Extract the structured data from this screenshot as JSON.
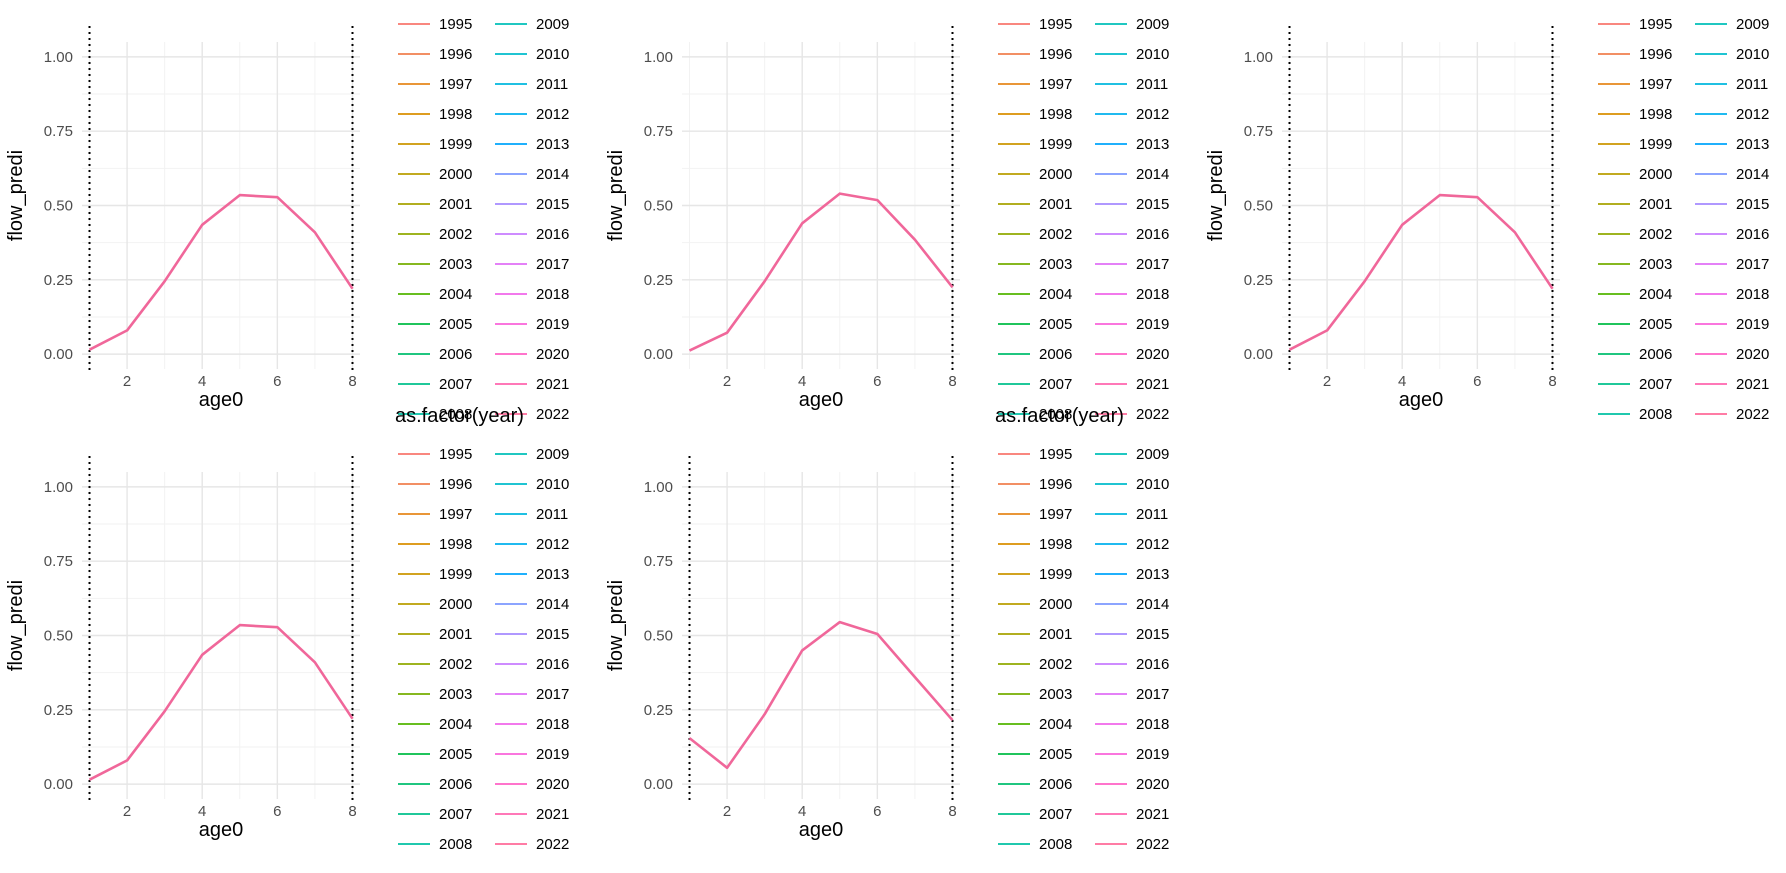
{
  "chart_data": [
    {
      "type": "line",
      "xlabel": "age0",
      "ylabel": "flow_predi",
      "xlim": [
        1,
        8
      ],
      "ylim": [
        0,
        1
      ],
      "xticks": [
        "2",
        "4",
        "6",
        "8"
      ],
      "yticks": [
        "0.00",
        "0.25",
        "0.50",
        "0.75",
        "1.00"
      ],
      "vlines": [
        1,
        8
      ],
      "legend_title": "as.factor(year)",
      "grid": true,
      "legend_position": "right",
      "x": [
        1,
        2,
        3,
        4,
        5,
        6,
        7,
        8
      ],
      "values": [
        0.015,
        0.08,
        0.245,
        0.435,
        0.535,
        0.528,
        0.41,
        0.22
      ]
    },
    {
      "type": "line",
      "xlabel": "age0",
      "ylabel": "flow_predi",
      "xlim": [
        1,
        8
      ],
      "ylim": [
        0,
        1
      ],
      "xticks": [
        "2",
        "4",
        "6",
        "8"
      ],
      "yticks": [
        "0.00",
        "0.25",
        "0.50",
        "0.75",
        "1.00"
      ],
      "vlines": [
        8
      ],
      "legend_title": "as.factor(year)",
      "grid": true,
      "legend_position": "right",
      "x": [
        1,
        2,
        3,
        4,
        5,
        6,
        7,
        8
      ],
      "values": [
        0.012,
        0.072,
        0.245,
        0.44,
        0.54,
        0.518,
        0.385,
        0.225
      ]
    },
    {
      "type": "line",
      "xlabel": "age0",
      "ylabel": "flow_predi",
      "xlim": [
        1,
        8
      ],
      "ylim": [
        0,
        1
      ],
      "xticks": [
        "2",
        "4",
        "6",
        "8"
      ],
      "yticks": [
        "0.00",
        "0.25",
        "0.50",
        "0.75",
        "1.00"
      ],
      "vlines": [
        1,
        8
      ],
      "legend_title": "",
      "grid": true,
      "legend_position": "right",
      "x": [
        1,
        2,
        3,
        4,
        5,
        6,
        7,
        8
      ],
      "values": [
        0.015,
        0.08,
        0.245,
        0.435,
        0.535,
        0.528,
        0.41,
        0.22
      ]
    },
    {
      "type": "line",
      "xlabel": "age0",
      "ylabel": "flow_predi",
      "xlim": [
        1,
        8
      ],
      "ylim": [
        0,
        1
      ],
      "xticks": [
        "2",
        "4",
        "6",
        "8"
      ],
      "yticks": [
        "0.00",
        "0.25",
        "0.50",
        "0.75",
        "1.00"
      ],
      "vlines": [
        1,
        8
      ],
      "legend_title": "",
      "grid": true,
      "legend_position": "right",
      "x": [
        1,
        2,
        3,
        4,
        5,
        6,
        7,
        8
      ],
      "values": [
        0.015,
        0.08,
        0.245,
        0.435,
        0.535,
        0.528,
        0.41,
        0.22
      ]
    },
    {
      "type": "line",
      "xlabel": "age0",
      "ylabel": "flow_predi",
      "xlim": [
        1,
        8
      ],
      "ylim": [
        0,
        1
      ],
      "xticks": [
        "2",
        "4",
        "6",
        "8"
      ],
      "yticks": [
        "0.00",
        "0.25",
        "0.50",
        "0.75",
        "1.00"
      ],
      "vlines": [
        1,
        8
      ],
      "legend_title": "",
      "grid": true,
      "legend_position": "right",
      "x": [
        1,
        2,
        3,
        4,
        5,
        6,
        7,
        8
      ],
      "values": [
        0.155,
        0.055,
        0.235,
        0.45,
        0.545,
        0.505,
        0.36,
        0.215
      ]
    }
  ],
  "legend": {
    "labels": [
      "1995",
      "1996",
      "1997",
      "1998",
      "1999",
      "2000",
      "2001",
      "2002",
      "2003",
      "2004",
      "2005",
      "2006",
      "2007",
      "2008",
      "2009",
      "2010",
      "2011",
      "2012",
      "2013",
      "2014",
      "2015",
      "2016",
      "2017",
      "2018",
      "2019",
      "2020",
      "2021",
      "2022"
    ],
    "colors": [
      "#F8766D",
      "#F07F4E",
      "#E6871B",
      "#D98F00",
      "#CB9600",
      "#BA9E00",
      "#A7A300",
      "#91A900",
      "#76AE00",
      "#53B400",
      "#00BB45",
      "#00BE6E",
      "#00C08B",
      "#00C0A3",
      "#00BFB8",
      "#00BCCC",
      "#00B7DE",
      "#00B0EE",
      "#00A5FC",
      "#7C97FF",
      "#A58AFF",
      "#C77CFF",
      "#E16FF6",
      "#F066EA",
      "#FA62D9",
      "#FF61C4",
      "#FF64AE",
      "#FF6A98"
    ],
    "line_color": "#F0679A"
  }
}
